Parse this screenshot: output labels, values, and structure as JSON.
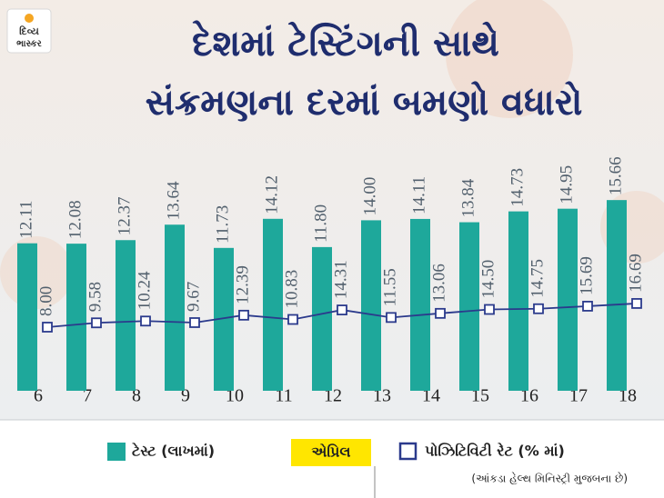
{
  "logo": [
    "દિવ્ય",
    "ભાસ્કર"
  ],
  "chart_data": {
    "type": "bar",
    "title": [
      "દેશમાં ટેસ્ટિંગની સાથે",
      "સંક્રમણના દરમાં બમણો વધારો"
    ],
    "categories": [
      "6",
      "7",
      "8",
      "9",
      "10",
      "11",
      "12",
      "13",
      "14",
      "15",
      "16",
      "17",
      "18"
    ],
    "xlabel": "એપ્રિલ",
    "series": [
      {
        "name": "ટેસ્ટ (લાખમાં)",
        "color": "#1ea89b",
        "values": [
          12.11,
          12.08,
          12.37,
          13.64,
          11.73,
          14.12,
          11.8,
          14,
          14.11,
          13.84,
          14.73,
          14.95,
          15.66
        ],
        "value_labels": [
          "12.11",
          "12.08",
          "12.37",
          "13.64",
          "11.73",
          "14.12",
          "11.80",
          "14.00",
          "14.11",
          "13.84",
          "14.73",
          "14.95",
          "15.66"
        ]
      },
      {
        "name": "પોઝિટિવિટી રેટ (% માં)",
        "color": "#2b3a8c",
        "type": "line",
        "axis": "y2",
        "values": [
          8,
          9.58,
          10.24,
          9.67,
          12.39,
          10.83,
          14.31,
          11.55,
          13.06,
          14.5,
          14.75,
          15.69,
          16.69
        ],
        "value_labels": [
          "8.00",
          "9.58",
          "10.24",
          "9.67",
          "12.39",
          "10.83",
          "14.31",
          "11.55",
          "13.06",
          "14.50",
          "14.75",
          "15.69",
          "16.69"
        ]
      }
    ],
    "note": "(આંકડા હેલ્થ મિનિસ્ટ્રી મુજબના છે)"
  }
}
